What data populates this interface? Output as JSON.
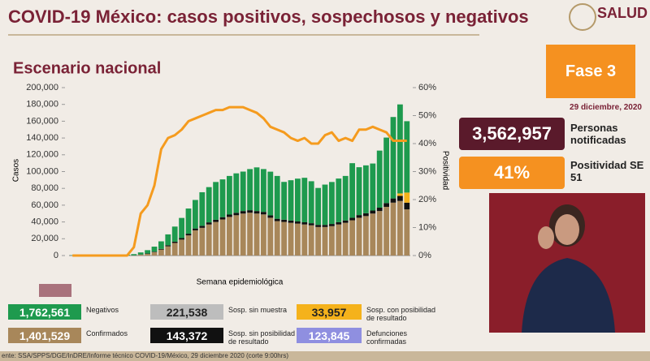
{
  "header": {
    "title": "COVID-19 México: casos positivos, sospechosos y negativos",
    "logo": "SALUD"
  },
  "chart_data": {
    "type": "bar",
    "stacked": true,
    "title": "Escenario nacional",
    "ylabel": "Casos",
    "y2label": "Positividad",
    "xlabel": "Semana epidemiológica",
    "categories": [
      null,
      null,
      null,
      null,
      null,
      null,
      null,
      null,
      null,
      null,
      null,
      null,
      null,
      null,
      null,
      null,
      null,
      null,
      null,
      null,
      null,
      null,
      null,
      null,
      null,
      null,
      null,
      null,
      null,
      null,
      null,
      null,
      null,
      null,
      null,
      null,
      null,
      null,
      null,
      null,
      null,
      null,
      null,
      null,
      null,
      null,
      null,
      null,
      null,
      null
    ],
    "ylim": [
      0,
      200000
    ],
    "yticks": [
      {
        "value": 0,
        "label": "0"
      },
      {
        "value": 20000,
        "label": "20,000"
      },
      {
        "value": 40000,
        "label": "40,000"
      },
      {
        "value": 60000,
        "label": "60,000"
      },
      {
        "value": 80000,
        "label": "80,000"
      },
      {
        "value": 100000,
        "label": "100,000"
      },
      {
        "value": 120000,
        "label": "120,000"
      },
      {
        "value": 140000,
        "label": "140,000"
      },
      {
        "value": 160000,
        "label": "160,000"
      },
      {
        "value": 180000,
        "label": "180,000"
      },
      {
        "value": 200000,
        "label": "200,000"
      }
    ],
    "y2lim": [
      0,
      60
    ],
    "y2ticks": [
      {
        "value": 0,
        "label": "0%"
      },
      {
        "value": 10,
        "label": "10%"
      },
      {
        "value": 20,
        "label": "20%"
      },
      {
        "value": 30,
        "label": "30%"
      },
      {
        "value": 40,
        "label": "40%"
      },
      {
        "value": 50,
        "label": "50%"
      },
      {
        "value": 60,
        "label": "60%"
      }
    ],
    "series": [
      {
        "color": "#a8875a",
        "values": [
          0,
          0,
          0,
          0,
          0,
          0,
          0,
          0,
          0,
          200,
          1000,
          2000,
          4000,
          7000,
          11000,
          15000,
          19000,
          24000,
          30000,
          33000,
          37000,
          40000,
          43000,
          46000,
          48000,
          50000,
          51000,
          50000,
          49000,
          45000,
          41000,
          40000,
          39000,
          38000,
          37000,
          36000,
          34000,
          34000,
          35000,
          37000,
          39000,
          42000,
          45000,
          47000,
          50000,
          53000,
          58000,
          63000,
          65000,
          55000
        ]
      },
      {
        "color": "#111111",
        "values": [
          0,
          0,
          0,
          0,
          0,
          0,
          0,
          0,
          0,
          0,
          200,
          400,
          600,
          900,
          1200,
          1500,
          1800,
          2000,
          2200,
          2400,
          2500,
          2600,
          2700,
          2800,
          2900,
          3000,
          3000,
          3000,
          3000,
          2900,
          2800,
          2700,
          2700,
          2600,
          2600,
          2500,
          2500,
          2500,
          2600,
          2700,
          2800,
          3000,
          3200,
          3400,
          3600,
          4000,
          4500,
          5000,
          6000,
          8000
        ]
      },
      {
        "color": "#f5b21b",
        "values": [
          0,
          0,
          0,
          0,
          0,
          0,
          0,
          0,
          0,
          0,
          0,
          0,
          0,
          0,
          0,
          0,
          0,
          0,
          0,
          0,
          0,
          0,
          0,
          0,
          0,
          0,
          0,
          0,
          0,
          0,
          0,
          0,
          0,
          0,
          0,
          0,
          0,
          0,
          0,
          0,
          0,
          0,
          0,
          0,
          0,
          0,
          0,
          0,
          3000,
          12000
        ]
      },
      {
        "color": "#1e9a4e",
        "values": [
          300,
          300,
          400,
          400,
          500,
          500,
          600,
          700,
          900,
          1500,
          2500,
          4000,
          6000,
          9000,
          13000,
          18000,
          24000,
          30000,
          34000,
          40000,
          42000,
          45000,
          45000,
          46000,
          47000,
          47000,
          49000,
          52000,
          51000,
          52000,
          51000,
          45000,
          48000,
          51000,
          53000,
          50000,
          44000,
          48000,
          50000,
          52000,
          53000,
          65000,
          57000,
          57000,
          56000,
          68000,
          78000,
          97000,
          106000,
          85000
        ]
      },
      {
        "type": "line",
        "axis": "y2",
        "color": "#f59b1e",
        "values": [
          0,
          0,
          0,
          0,
          0,
          0,
          0,
          0,
          0,
          3,
          15,
          18,
          25,
          38,
          42,
          43,
          45,
          48,
          49,
          50,
          51,
          52,
          52,
          53,
          53,
          53,
          52,
          51,
          49,
          46,
          45,
          44,
          42,
          41,
          42,
          40,
          40,
          43,
          44,
          41,
          42,
          41,
          45,
          45,
          46,
          45,
          44,
          41,
          41,
          41
        ]
      }
    ]
  },
  "panel": {
    "phase": "Fase 3",
    "date": "29 diciembre, 2020",
    "notified_value": "3,562,957",
    "notified_label": "Personas notificadas",
    "positivity_value": "41%",
    "positivity_label": "Positividad SE 51"
  },
  "summary": [
    {
      "value": "1,762,561",
      "label": "Negativos",
      "color": "#1e9a4e"
    },
    {
      "value": "221,538",
      "label": "Sosp. sin muestra",
      "color": "#bdbdbd"
    },
    {
      "value": "33,957",
      "label": "Sosp. con posibilidad de resultado",
      "color": "#f5b21b"
    },
    {
      "value": "1,401,529",
      "label": "Confirmados",
      "color": "#a8875a"
    },
    {
      "value": "143,372",
      "label": "Sosp. sin posibilidad de resultado",
      "color": "#111111"
    },
    {
      "value": "123,845",
      "label": "Defunciones confirmadas",
      "color": "#8f8fe0"
    }
  ],
  "footer": {
    "source": "ente: SSA/SPPS/DGE/InDRE/Informe técnico COVID-19/México, 29 diciembre 2020 (corte 9:00hrs)"
  }
}
